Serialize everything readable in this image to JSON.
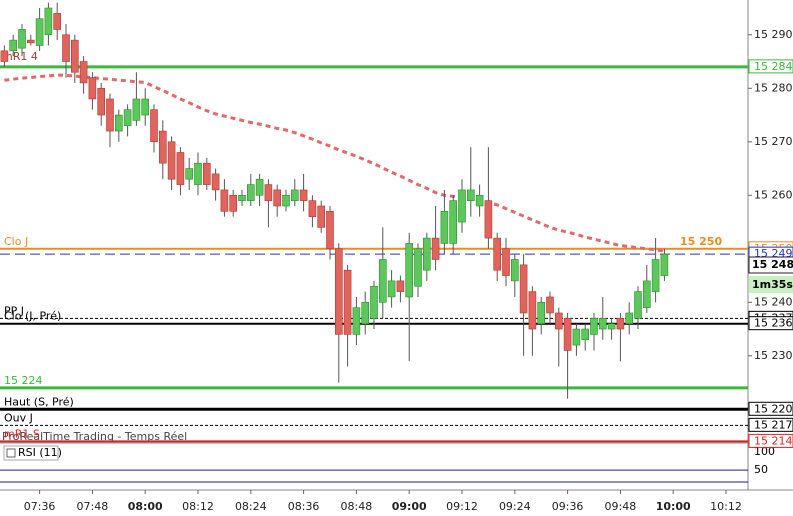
{
  "chart_data": {
    "type": "candlestick",
    "categories": [
      null,
      null,
      null,
      null,
      "07:36",
      null,
      null,
      null,
      null,
      null,
      "07:48",
      null,
      null,
      null,
      null,
      null,
      "08:00",
      null,
      null,
      null,
      null,
      null,
      "08:12",
      null,
      null,
      null,
      null,
      null,
      "08:24",
      null,
      null,
      null,
      null,
      null,
      "08:36",
      null,
      null,
      null,
      null,
      null,
      "08:48",
      null,
      null,
      null,
      null,
      null,
      "09:00",
      null,
      null,
      null,
      null,
      null,
      "09:12",
      null,
      null,
      null,
      null,
      null,
      "09:24",
      null,
      null,
      null,
      null,
      null,
      "09:36",
      null,
      null,
      null,
      null,
      null,
      "09:48",
      null,
      null,
      null,
      null,
      null,
      "10:00",
      null,
      null,
      null,
      null,
      null,
      "10:12",
      null,
      null
    ],
    "open": [
      15287,
      15287,
      15287.5,
      15289,
      15288,
      15290,
      15294,
      15290,
      15289,
      15285,
      15282,
      15280,
      15278,
      15272,
      15273,
      15274,
      15275,
      15276,
      15272,
      15270,
      15268,
      15263,
      15262,
      15266,
      15264,
      15261,
      15260,
      15259,
      15259,
      15260,
      15262,
      15261,
      15258,
      15259,
      15261,
      15259,
      15258,
      15257,
      15250,
      15246,
      15234,
      15236,
      15237,
      15240,
      15241,
      15244,
      15241,
      15243,
      15246,
      15252,
      15251,
      15251,
      15255,
      15259,
      15258,
      15259,
      15252,
      15250,
      15244,
      15247,
      15242,
      15236,
      15241,
      15238,
      15237,
      15232,
      15233,
      15234,
      15235,
      15235,
      15237,
      15236,
      15237,
      15239,
      15242,
      15245,
      null,
      null,
      null,
      null,
      null,
      null,
      null,
      null,
      null
    ],
    "high": [
      15288,
      15290,
      15292,
      15290,
      15295,
      15296,
      15296,
      15292,
      15290,
      15286,
      15283,
      15281,
      15279,
      15276,
      15277,
      15283,
      15280,
      15277,
      15274,
      15271,
      15269,
      15267,
      15268,
      15267,
      15265,
      15263,
      15261,
      15261,
      15264,
      15264,
      15263,
      15262,
      15261,
      15263,
      15264,
      15260,
      15259,
      15258,
      15251,
      15247,
      15241,
      15242,
      15244,
      15254,
      15246,
      15245,
      15253,
      15251,
      15253,
      15258,
      15261,
      15260,
      15263,
      15269,
      15262,
      15269,
      15253,
      15252,
      15249,
      15249,
      15243,
      15241,
      15242,
      15239,
      15238,
      15236,
      15236,
      15238,
      15241,
      15237,
      15238,
      15240,
      15243,
      15247,
      15252,
      15250,
      null,
      null,
      null,
      null,
      null,
      null,
      null,
      null,
      null
    ],
    "low": [
      15284,
      15286,
      15286,
      15288,
      15287,
      15288,
      15289,
      15282,
      15281,
      15279,
      15276,
      15273,
      15269,
      15270,
      15271,
      15273,
      15273,
      15268,
      15263,
      15261,
      15260,
      15261,
      15260,
      15261,
      15259,
      15256,
      15256,
      15258,
      15258,
      15258,
      15254,
      15256,
      15257,
      15258,
      15257,
      15254,
      15253,
      15248,
      15225,
      15228,
      15232,
      15234,
      15235,
      15237,
      15239,
      15240,
      15229,
      15241,
      15244,
      15246,
      15249,
      15249,
      15253,
      15256,
      15256,
      15250,
      15244,
      15243,
      15241,
      15230,
      15230,
      15234,
      15236,
      15228,
      15222,
      15230,
      15231,
      15231,
      15233,
      15233,
      15229,
      15234,
      15235,
      15238,
      15240,
      15244,
      null,
      null,
      null,
      null,
      null,
      null,
      null,
      null,
      null
    ],
    "close": [
      15285,
      15289,
      15291,
      15288.5,
      15293,
      15295,
      15291,
      15285,
      15283,
      15281,
      15278,
      15275,
      15272,
      15275,
      15276,
      15278,
      15278,
      15270,
      15266,
      15263,
      15262,
      15265,
      15266,
      15262,
      15261,
      15257,
      15257,
      15260,
      15262,
      15263,
      15259,
      15258,
      15260,
      15261,
      15259,
      15256,
      15254,
      15250,
      15234,
      15234,
      15239,
      15240,
      15243,
      15248,
      15244,
      15242,
      15251,
      15250,
      15252,
      15248,
      15257,
      15259,
      15261,
      15261,
      15260,
      15252,
      15246,
      15245,
      15248,
      15238,
      15235,
      15240,
      15238,
      15235,
      15231,
      15235,
      15235,
      15237,
      15237,
      15236,
      15235,
      15238,
      15242,
      15244,
      15248,
      15249,
      null,
      null,
      null,
      null,
      null,
      null,
      null,
      null,
      null
    ],
    "up_color": "#5cc85c",
    "down_color": "#e0645c",
    "ma": {
      "color": "#e06a6a",
      "values": [
        15281.5,
        15281.7,
        15281.9,
        15282.0,
        15282.2,
        15282.3,
        15282.5,
        15282.4,
        15282.3,
        15282.1,
        15282.0,
        15281.8,
        15281.7,
        15281.5,
        15281.4,
        15281.2,
        15281.1,
        15280.3,
        15279.6,
        15278.8,
        15278.0,
        15277.3,
        15276.5,
        15275.8,
        15275.2,
        15274.8,
        15274.4,
        15274.0,
        15273.6,
        15273.3,
        15272.9,
        15272.5,
        15272.2,
        15271.7,
        15271.1,
        15270.5,
        15269.8,
        15269.2,
        15268.5,
        15267.9,
        15267.3,
        15266.6,
        15265.9,
        15265.1,
        15264.3,
        15263.6,
        15262.8,
        15262.0,
        15261.3,
        15260.5,
        15260.0,
        15259.8,
        15259.5,
        15259.2,
        15259.0,
        15258.7,
        15258.2,
        15257.5,
        15256.8,
        15256.1,
        15255.4,
        15254.7,
        15254.0,
        15253.5,
        15253.1,
        15252.7,
        15252.2,
        15251.8,
        15251.4,
        15251.0,
        15250.6,
        15250.4,
        15250.2,
        15250.0,
        15249.8,
        15249.6,
        null,
        null,
        null,
        null,
        null,
        null,
        null,
        null,
        null
      ]
    },
    "ylim": [
      15213.7,
      15296.5
    ],
    "yticks": [
      {
        "value": 15230,
        "label": "15 230"
      },
      {
        "value": 15240,
        "label": "15 240"
      },
      {
        "value": 15250,
        "label": "15 250"
      },
      {
        "value": 15260,
        "label": "15 260"
      },
      {
        "value": 15270,
        "label": "15 270"
      },
      {
        "value": 15280,
        "label": "15 280"
      },
      {
        "value": 15290,
        "label": "15 290"
      }
    ],
    "levels": [
      {
        "value": 15284,
        "label": "15 284",
        "color": "#3cb83c",
        "style": "thick"
      },
      {
        "value": 15250,
        "label": "15 250",
        "name": "Clo J",
        "color": "#f08c1e",
        "style": "solid"
      },
      {
        "value": 15249,
        "label": "15 249",
        "color": "#2233cc",
        "style": "dashed"
      },
      {
        "value": 15237,
        "label": "15 237",
        "name": "PP J",
        "color": "#000000",
        "style": "dashed"
      },
      {
        "value": 15236,
        "label": "15 236",
        "name": "Clo (J, Pré)",
        "color": "#000000",
        "style": "solid"
      },
      {
        "value": 15224,
        "name": "15 224",
        "color": "#3cb83c",
        "style": "thick"
      },
      {
        "value": 15220,
        "label": "15 220",
        "name": "Haut (S, Pré)",
        "color": "#000000",
        "style": "thick"
      },
      {
        "value": 15217,
        "label": "15 217",
        "name": "Ouv J",
        "color": "#000000",
        "style": "dashed"
      },
      {
        "value": 15214,
        "label": "15 214",
        "name": "mR1 S",
        "color": "#dd2222",
        "style": "solid"
      }
    ],
    "annotations": {
      "top_left": "mR1 4",
      "orange_label": "15 250",
      "price": "15 248",
      "timer": "1m35s",
      "watermark": "ProRealTime Trading - Temps Réel"
    },
    "rsi": {
      "title": "RSI (11)",
      "ylim": [
        -5,
        125
      ],
      "yticks": [
        50,
        100
      ],
      "color": "#1a1aa0"
    }
  }
}
